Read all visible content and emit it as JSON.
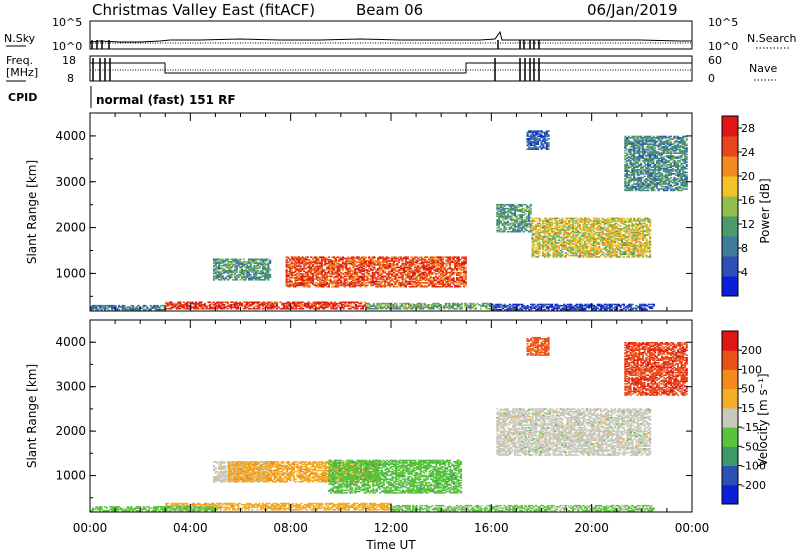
{
  "header": {
    "title": "Christmas Valley East (fitACF)",
    "beam": "Beam 06",
    "date": "06/Jan/2019"
  },
  "panels": {
    "noise": {
      "left_label": "N.Sky",
      "right_label": "N.Search",
      "left_ticks": [
        "10^5",
        "10^0"
      ],
      "right_ticks": [
        "10^5",
        "10^0"
      ]
    },
    "freq": {
      "left_label_1": "Freq.",
      "left_label_2": "[MHz]",
      "left_ticks": [
        "18",
        "8"
      ],
      "right_label": "Nave",
      "right_ticks": [
        "60",
        "0"
      ]
    },
    "cpid": {
      "label": "CPID",
      "value": "normal (fast) 151 RF"
    }
  },
  "chart_data": [
    {
      "type": "heatmap",
      "title": "",
      "xlabel": "Time UT",
      "ylabel": "Slant Range [km]",
      "x_ticks": [
        "00:00",
        "04:00",
        "08:00",
        "12:00",
        "16:00",
        "20:00",
        "00:00"
      ],
      "y_ticks": [
        "1000",
        "2000",
        "3000",
        "4000"
      ],
      "xlim": [
        0,
        24
      ],
      "ylim": [
        180,
        4500
      ],
      "colorbar": {
        "label": "Power [dB]",
        "ticks": [
          "4",
          "8",
          "12",
          "16",
          "20",
          "24",
          "28"
        ],
        "range": [
          0,
          30
        ],
        "colors": [
          "#0b1fd6",
          "#2c4fb8",
          "#3f7a9c",
          "#4a9a6a",
          "#8fbf4a",
          "#f3c229",
          "#f28a1e",
          "#e8451c",
          "#e01515"
        ]
      },
      "regions": [
        {
          "t0": 4.9,
          "t1": 7.2,
          "r0": 850,
          "r1": 1300,
          "level": 11
        },
        {
          "t0": 7.8,
          "t1": 15.0,
          "r0": 700,
          "r1": 1350,
          "level": 25
        },
        {
          "t0": 3.0,
          "t1": 11.0,
          "r0": 220,
          "r1": 380,
          "level": 27
        },
        {
          "t0": 11.0,
          "t1": 16.0,
          "r0": 220,
          "r1": 360,
          "level": 13
        },
        {
          "t0": 16.0,
          "t1": 22.5,
          "r0": 200,
          "r1": 320,
          "level": 4
        },
        {
          "t0": 0.0,
          "t1": 3.0,
          "r0": 200,
          "r1": 290,
          "level": 8
        },
        {
          "t0": 16.2,
          "t1": 17.6,
          "r0": 1900,
          "r1": 2500,
          "level": 11
        },
        {
          "t0": 17.6,
          "t1": 22.3,
          "r0": 1350,
          "r1": 2200,
          "level": 17
        },
        {
          "t0": 21.3,
          "t1": 23.8,
          "r0": 2800,
          "r1": 4000,
          "level": 10
        },
        {
          "t0": 17.4,
          "t1": 18.3,
          "r0": 3700,
          "r1": 4100,
          "level": 6
        }
      ]
    },
    {
      "type": "heatmap",
      "title": "",
      "xlabel": "Time UT",
      "ylabel": "Slant Range [km]",
      "x_ticks": [
        "00:00",
        "04:00",
        "08:00",
        "12:00",
        "16:00",
        "20:00",
        "00:00"
      ],
      "y_ticks": [
        "1000",
        "2000",
        "3000",
        "4000"
      ],
      "xlim": [
        0,
        24
      ],
      "ylim": [
        180,
        4500
      ],
      "colorbar": {
        "label": "Velocity [m s⁻¹]",
        "ticks": [
          "200",
          "100",
          "50",
          "15",
          "-15",
          "-50",
          "-100",
          "-200"
        ],
        "range": [
          -250,
          250
        ],
        "colors": [
          "#0b1fd6",
          "#2c4fb8",
          "#3c9a68",
          "#59c43a",
          "#c8c8bc",
          "#f3ad26",
          "#f28a1e",
          "#ec5019",
          "#e01515"
        ]
      },
      "regions": [
        {
          "t0": 4.9,
          "t1": 7.2,
          "r0": 850,
          "r1": 1300,
          "level": 0
        },
        {
          "t0": 5.5,
          "t1": 11.5,
          "r0": 850,
          "r1": 1300,
          "level": 70
        },
        {
          "t0": 9.5,
          "t1": 14.8,
          "r0": 600,
          "r1": 1350,
          "level": -60
        },
        {
          "t0": 3.0,
          "t1": 12.0,
          "r0": 220,
          "r1": 380,
          "level": 60
        },
        {
          "t0": 0.0,
          "t1": 5.0,
          "r0": 200,
          "r1": 300,
          "level": -50
        },
        {
          "t0": 12.0,
          "t1": 22.5,
          "r0": 200,
          "r1": 330,
          "level": -40
        },
        {
          "t0": 16.2,
          "t1": 22.3,
          "r0": 1450,
          "r1": 2500,
          "level": 0
        },
        {
          "t0": 21.3,
          "t1": 23.8,
          "r0": 2800,
          "r1": 4000,
          "level": 180
        },
        {
          "t0": 17.4,
          "t1": 18.3,
          "r0": 3700,
          "r1": 4100,
          "level": 160
        }
      ]
    }
  ]
}
